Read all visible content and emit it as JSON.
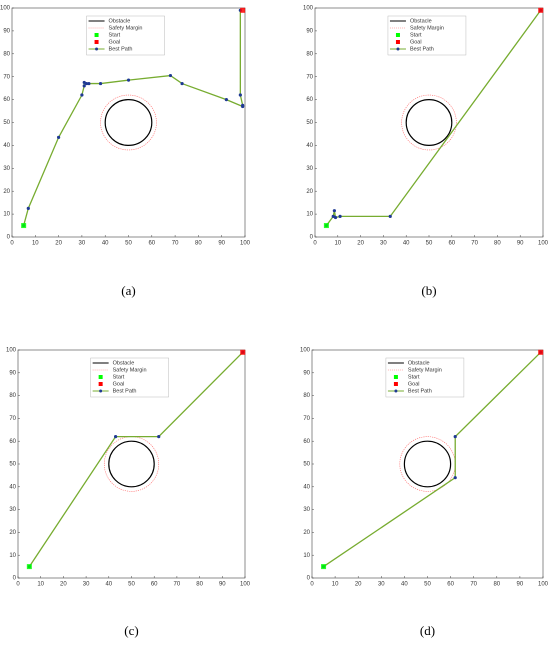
{
  "chart_data": [
    {
      "type": "line",
      "label": "(a)",
      "xlim": [
        0,
        100
      ],
      "ylim": [
        0,
        100
      ],
      "xticks": [
        0,
        10,
        20,
        30,
        40,
        50,
        60,
        70,
        80,
        90,
        100
      ],
      "yticks": [
        0,
        10,
        20,
        30,
        40,
        50,
        60,
        70,
        80,
        90,
        100
      ],
      "obstacle": {
        "name": "Obstacle",
        "x": 50,
        "y": 50,
        "radius": 10,
        "color": "#000000"
      },
      "safety_margin": {
        "name": "Safety Margin",
        "radius": 12,
        "color": "#ff6666"
      },
      "start": {
        "name": "Start",
        "x": 5,
        "y": 5,
        "color": "#00ff00"
      },
      "goal": {
        "name": "Goal",
        "x": 99,
        "y": 99,
        "color": "#ff0000"
      },
      "series": [
        {
          "name": "Best Path",
          "color": "#77ac30",
          "marker_color": "#1f3a93",
          "x": [
            5,
            7,
            20,
            30,
            31,
            31,
            32,
            33,
            38,
            50,
            68,
            73,
            92,
            99,
            99,
            98,
            98
          ],
          "values": [
            5,
            12.5,
            43.5,
            62,
            66,
            67.5,
            67,
            67,
            67,
            68.5,
            70.5,
            67,
            60,
            57,
            57.5,
            62,
            99
          ]
        }
      ]
    },
    {
      "type": "line",
      "label": "(b)",
      "xlim": [
        0,
        100
      ],
      "ylim": [
        0,
        100
      ],
      "xticks": [
        0,
        10,
        20,
        30,
        40,
        50,
        60,
        70,
        80,
        90,
        100
      ],
      "yticks": [
        0,
        10,
        20,
        30,
        40,
        50,
        60,
        70,
        80,
        90,
        100
      ],
      "obstacle": {
        "name": "Obstacle",
        "x": 50,
        "y": 50,
        "radius": 10,
        "color": "#000000"
      },
      "safety_margin": {
        "name": "Safety Margin",
        "radius": 12,
        "color": "#ff6666"
      },
      "start": {
        "name": "Start",
        "x": 5,
        "y": 5,
        "color": "#00ff00"
      },
      "goal": {
        "name": "Goal",
        "x": 99,
        "y": 99,
        "color": "#ff0000"
      },
      "series": [
        {
          "name": "Best Path",
          "color": "#77ac30",
          "marker_color": "#1f3a93",
          "x": [
            5,
            8,
            8.5,
            9,
            11,
            33,
            99
          ],
          "values": [
            5,
            9,
            11.5,
            8.5,
            9,
            9,
            99
          ]
        }
      ]
    },
    {
      "type": "line",
      "label": "(c)",
      "xlim": [
        0,
        100
      ],
      "ylim": [
        0,
        100
      ],
      "xticks": [
        0,
        10,
        20,
        30,
        40,
        50,
        60,
        70,
        80,
        90,
        100
      ],
      "yticks": [
        0,
        10,
        20,
        30,
        40,
        50,
        60,
        70,
        80,
        90,
        100
      ],
      "obstacle": {
        "name": "Obstacle",
        "x": 50,
        "y": 50,
        "radius": 10,
        "color": "#000000"
      },
      "safety_margin": {
        "name": "Safety Margin",
        "radius": 12,
        "color": "#ff6666"
      },
      "start": {
        "name": "Start",
        "x": 5,
        "y": 5,
        "color": "#00ff00"
      },
      "goal": {
        "name": "Goal",
        "x": 99,
        "y": 99,
        "color": "#ff0000"
      },
      "series": [
        {
          "name": "Best Path",
          "color": "#77ac30",
          "marker_color": "#1f3a93",
          "x": [
            5,
            43,
            62,
            99
          ],
          "values": [
            5,
            62,
            62,
            99
          ]
        }
      ]
    },
    {
      "type": "line",
      "label": "(d)",
      "xlim": [
        0,
        100
      ],
      "ylim": [
        0,
        100
      ],
      "xticks": [
        0,
        10,
        20,
        30,
        40,
        50,
        60,
        70,
        80,
        90,
        100
      ],
      "yticks": [
        0,
        10,
        20,
        30,
        40,
        50,
        60,
        70,
        80,
        90,
        100
      ],
      "obstacle": {
        "name": "Obstacle",
        "x": 50,
        "y": 50,
        "radius": 10,
        "color": "#000000"
      },
      "safety_margin": {
        "name": "Safety Margin",
        "radius": 12,
        "color": "#ff6666"
      },
      "start": {
        "name": "Start",
        "x": 5,
        "y": 5,
        "color": "#00ff00"
      },
      "goal": {
        "name": "Goal",
        "x": 99,
        "y": 99,
        "color": "#ff0000"
      },
      "series": [
        {
          "name": "Best Path",
          "color": "#77ac30",
          "marker_color": "#1f3a93",
          "x": [
            5,
            62,
            62,
            99
          ],
          "values": [
            5,
            44,
            62,
            99
          ]
        }
      ]
    }
  ]
}
